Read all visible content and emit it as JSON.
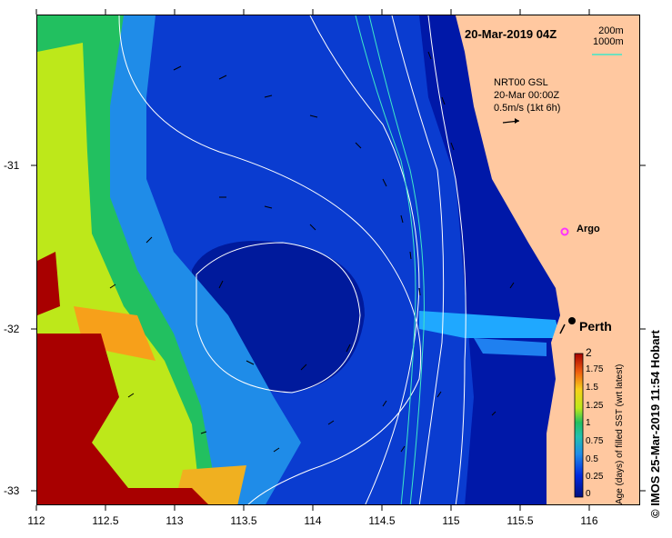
{
  "title": "20-Mar-2019 04Z",
  "depth_legend": {
    "contour_a": "200m",
    "contour_b": "1000m",
    "line_color": "#3ee8c8"
  },
  "current_key": {
    "line1": "NRT00 GSL",
    "line2": "20-Mar 00:00Z",
    "line3": "0.5m/s (1kt 6h)"
  },
  "labels": {
    "argo": "Argo",
    "city": "Perth"
  },
  "x_ticks": [
    "112",
    "112.5",
    "113",
    "113.5",
    "114",
    "114.5",
    "115",
    "115.5",
    "116"
  ],
  "y_ticks": [
    "-31",
    "-32",
    "-33"
  ],
  "colorbar": {
    "ticks": [
      "2",
      "1.75",
      "1.5",
      "1.25",
      "1",
      "0.75",
      "0.5",
      "0.25",
      "0"
    ],
    "label": "Age (days) of filled SST (wrt latest)"
  },
  "credit": "© IMOS 25-Mar-2019 11:54 Hobart",
  "colors": {
    "land": "#ffc8a0",
    "ocean_deep": "#000f9a",
    "argo_marker": "#ff33ff"
  }
}
